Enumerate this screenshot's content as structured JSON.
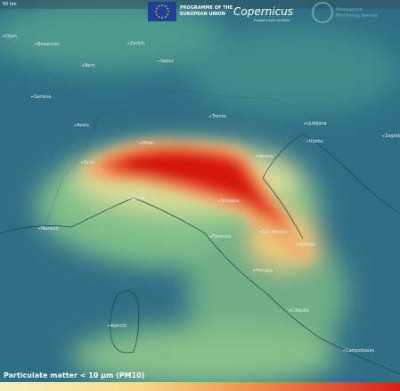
{
  "header": {
    "scale": "50 km",
    "eu_line1": "PROGRAMME OF THE",
    "eu_line2": "EUROPEAN UNION",
    "copernicus": "Copernicus",
    "copernicus_tagline": "Europe's eyes on Earth",
    "service_line1": "Atmosphere",
    "service_line2": "Monitoring Service"
  },
  "places": [
    "Dijon",
    "Besançon",
    "Zurich",
    "Vaduz",
    "Bern",
    "Geneva",
    "Aosta",
    "Milan",
    "Turin",
    "Trento",
    "Venice",
    "Ljubljana",
    "Zagreb",
    "Rijeka",
    "Bologna",
    "Genoa",
    "Monaco",
    "Florence",
    "San Marino",
    "Ancona",
    "Perugia",
    "Ajaccio",
    "L'Aquila",
    "Campobasso"
  ],
  "legend": {
    "title": "Particulate matter < 10 µm (PM10)"
  }
}
